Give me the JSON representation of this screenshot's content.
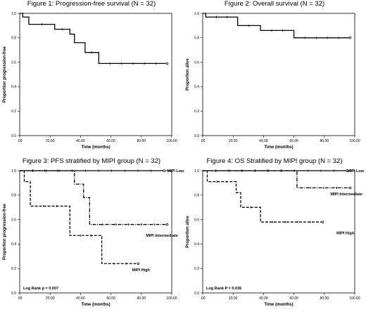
{
  "chart_data": [
    {
      "type": "line",
      "title": "Figure 1: Progression-free survival (N = 32)",
      "xlabel": "Time (months)",
      "ylabel": "Proportion progression-free",
      "xlim": [
        0,
        100
      ],
      "ylim": [
        0,
        1
      ],
      "xticks": [
        ".00",
        "20.00",
        "40.00",
        "60.00",
        "80.00",
        "100.00"
      ],
      "yticks": [
        "0.0",
        "0.2",
        "0.4",
        "0.6",
        "0.8",
        "1.0"
      ],
      "series": [
        {
          "style": "solid",
          "x": [
            0,
            2,
            6,
            23,
            33,
            36,
            43,
            52,
            97
          ],
          "y": [
            1.0,
            0.97,
            0.91,
            0.87,
            0.83,
            0.76,
            0.68,
            0.59,
            0.59
          ]
        }
      ],
      "annotations": []
    },
    {
      "type": "line",
      "title": "Figure 2: Overall survival (N = 32)",
      "xlabel": "Time (months)",
      "ylabel": "Proportion alive",
      "xlim": [
        0,
        100
      ],
      "ylim": [
        0,
        1
      ],
      "xticks": [
        ".00",
        "20.00",
        "40.00",
        "60.00",
        "80.00",
        "100.00"
      ],
      "yticks": [
        "0.0",
        "0.2",
        "0.4",
        "0.6",
        "0.8",
        "1.0"
      ],
      "series": [
        {
          "style": "solid",
          "x": [
            0,
            2,
            23,
            38,
            60,
            97
          ],
          "y": [
            1.0,
            0.97,
            0.9,
            0.86,
            0.8,
            0.8
          ]
        }
      ],
      "annotations": []
    },
    {
      "type": "line",
      "title": "Figure 3: PFS stratified by MIPI group (N = 32)",
      "xlabel": "Time (months)",
      "ylabel": "Proportion progression-free",
      "xlim": [
        0,
        100
      ],
      "ylim": [
        0,
        1
      ],
      "xticks": [
        ".00",
        "20.00",
        "40.00",
        "60.00",
        "80.00",
        "100.00"
      ],
      "yticks": [
        "0.0",
        "0.2",
        "0.4",
        "0.6",
        "0.8",
        "1.0"
      ],
      "series": [
        {
          "name": "MIPI Low",
          "style": "solid",
          "x": [
            0,
            95
          ],
          "y": [
            1.0,
            1.0
          ]
        },
        {
          "name": "MIPI Intermediate",
          "style": "dashdot",
          "x": [
            0,
            33,
            36,
            42,
            46,
            97
          ],
          "y": [
            1.0,
            1.0,
            0.89,
            0.78,
            0.56,
            0.56
          ]
        },
        {
          "name": "MIPI High",
          "style": "dashed",
          "x": [
            0,
            3,
            7,
            33,
            54,
            78
          ],
          "y": [
            1.0,
            0.91,
            0.71,
            0.47,
            0.24,
            0.24
          ]
        }
      ],
      "annotations": [
        "Log Rank p = 0.007"
      ]
    },
    {
      "type": "line",
      "title": "Figure 4: OS Stratified by MIPI group (N = 32)",
      "xlabel": "Time (months)",
      "ylabel": "Proportion alive",
      "xlim": [
        0,
        100
      ],
      "ylim": [
        0,
        1
      ],
      "xticks": [
        ".00",
        "20.00",
        "40.00",
        "60.00",
        "80.00",
        "100.00"
      ],
      "yticks": [
        "0.0",
        "0.2",
        "0.4",
        "0.6",
        "0.8",
        "1.0"
      ],
      "series": [
        {
          "name": "MIPI Low",
          "style": "solid",
          "x": [
            0,
            95
          ],
          "y": [
            1.0,
            1.0
          ]
        },
        {
          "name": "MIPI Intermediate",
          "style": "dashdot",
          "x": [
            0,
            60,
            62,
            97
          ],
          "y": [
            1.0,
            1.0,
            0.86,
            0.86
          ]
        },
        {
          "name": "MIPI High",
          "style": "dashed",
          "x": [
            0,
            3,
            22,
            25,
            38,
            79
          ],
          "y": [
            1.0,
            0.91,
            0.82,
            0.7,
            0.58,
            0.58
          ]
        }
      ],
      "annotations": [
        "Log Rank P = 0.036"
      ]
    }
  ]
}
